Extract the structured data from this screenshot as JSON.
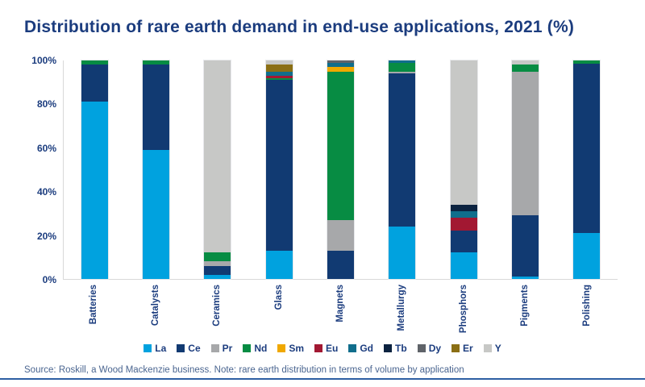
{
  "title": "Distribution of rare earth demand in end-use applications, 2021 (%)",
  "source_note": "Source: Roskill, a Wood Mackenzie business. Note: rare earth distribution in terms of volume by application",
  "colors": {
    "title_text": "#1B3C7E",
    "axis_text": "#1B3C7E",
    "legend_text": "#1B3C7E",
    "source_text": "#4A6590",
    "axis_line": "#D9D9D9",
    "bottom_rule": "#2E5FA3",
    "background": "#FFFFFF"
  },
  "chart_data": {
    "type": "bar",
    "stacked": true,
    "title": "Distribution of rare earth demand in end-use applications, 2021 (%)",
    "xlabel": "",
    "ylabel": "",
    "ylim": [
      0,
      100
    ],
    "grid": false,
    "legend_position": "bottom",
    "yticks": [
      0,
      20,
      40,
      60,
      80,
      100
    ],
    "ytick_labels": [
      "0%",
      "20%",
      "40%",
      "60%",
      "80%",
      "100%"
    ],
    "categories": [
      "Batteries",
      "Catalysts",
      "Ceramics",
      "Glass",
      "Magnets",
      "Metallurgy",
      "Phosphors",
      "Pigments",
      "Polishing"
    ],
    "series": [
      {
        "name": "La",
        "color": "#00A2DF",
        "values": [
          81,
          59,
          2,
          13,
          0,
          24,
          12,
          1,
          21
        ]
      },
      {
        "name": "Ce",
        "color": "#113A72",
        "values": [
          17,
          39,
          4,
          78,
          13,
          70,
          10,
          28,
          77.5
        ]
      },
      {
        "name": "Pr",
        "color": "#A7A8AA",
        "values": [
          0,
          0,
          2,
          0,
          14,
          1,
          0,
          66,
          0
        ]
      },
      {
        "name": "Nd",
        "color": "#078C43",
        "values": [
          2,
          2,
          4,
          1,
          68,
          4,
          0,
          3,
          1.5
        ]
      },
      {
        "name": "Sm",
        "color": "#F0A800",
        "values": [
          0,
          0,
          0,
          0,
          2,
          0,
          0,
          0,
          0
        ]
      },
      {
        "name": "Eu",
        "color": "#A21832",
        "values": [
          0,
          0,
          0,
          1,
          0,
          0,
          6,
          0,
          0
        ]
      },
      {
        "name": "Gd",
        "color": "#106E8C",
        "values": [
          0,
          0,
          0,
          2,
          2,
          1,
          3,
          0,
          0
        ]
      },
      {
        "name": "Tb",
        "color": "#0C2340",
        "values": [
          0,
          0,
          0,
          0,
          0,
          0,
          3,
          0,
          0
        ]
      },
      {
        "name": "Dy",
        "color": "#5F6369",
        "values": [
          0,
          0,
          0,
          0,
          1,
          0,
          0,
          0,
          0
        ]
      },
      {
        "name": "Er",
        "color": "#8B6F14",
        "values": [
          0,
          0,
          0,
          3,
          0,
          0,
          0,
          0,
          0
        ]
      },
      {
        "name": "Y",
        "color": "#C7C8C6",
        "values": [
          0,
          0,
          88,
          2,
          0,
          0,
          66,
          2,
          0
        ]
      }
    ]
  }
}
